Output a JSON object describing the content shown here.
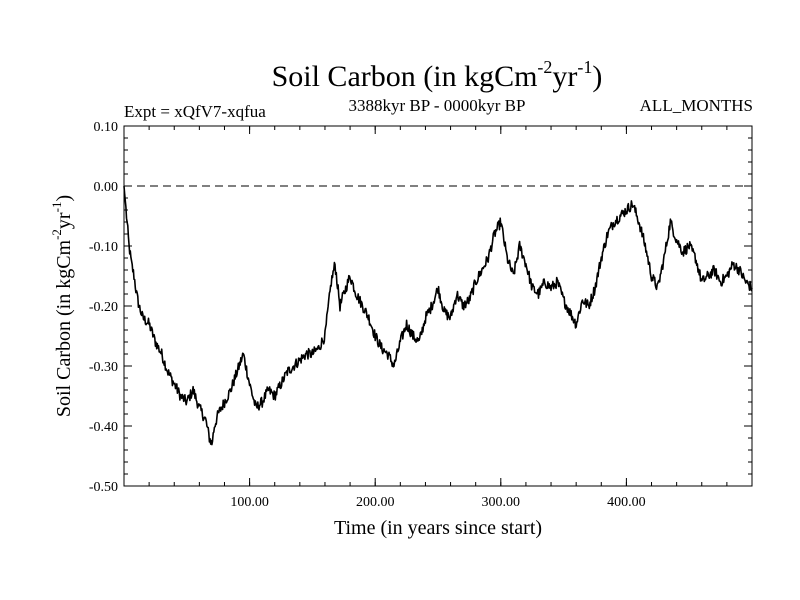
{
  "chart_data": {
    "type": "line",
    "title_main": "Soil Carbon (in kgCm",
    "title_sup1": "-2",
    "title_mid": "yr",
    "title_sup2": "-1",
    "title_end": ")",
    "subtitle_left": "Expt = xQfV7-xqfua",
    "subtitle_center": "3388kyr BP - 0000kyr BP",
    "subtitle_right": "ALL_MONTHS",
    "xlabel": "Time (in years since start)",
    "ylabel_main": "Soil Carbon (in kgCm",
    "ylabel_sup1": "-2",
    "ylabel_mid": "yr",
    "ylabel_sup2": "-1",
    "ylabel_end": ")",
    "xlim": [
      0,
      500
    ],
    "ylim": [
      -0.5,
      0.1
    ],
    "x_ticks": [
      100,
      200,
      300,
      400
    ],
    "x_tick_labels": [
      "100.00",
      "200.00",
      "300.00",
      "400.00"
    ],
    "y_ticks": [
      0.1,
      0.0,
      -0.1,
      -0.2,
      -0.3,
      -0.4,
      -0.5
    ],
    "y_tick_labels": [
      "0.10",
      "0.00",
      "-0.10",
      "-0.20",
      "-0.30",
      "-0.40",
      "-0.50"
    ],
    "reference_line": 0.0,
    "series": [
      {
        "name": "Soil Carbon",
        "color": "#000000",
        "x": [
          0,
          2,
          4,
          6,
          8,
          10,
          12,
          15,
          20,
          25,
          30,
          35,
          40,
          45,
          50,
          55,
          60,
          65,
          68,
          70,
          72,
          75,
          80,
          85,
          90,
          95,
          100,
          105,
          110,
          115,
          120,
          125,
          130,
          135,
          140,
          145,
          150,
          155,
          160,
          165,
          168,
          172,
          175,
          180,
          185,
          190,
          195,
          200,
          205,
          210,
          215,
          220,
          225,
          230,
          235,
          240,
          245,
          250,
          255,
          260,
          265,
          270,
          275,
          280,
          285,
          290,
          295,
          300,
          305,
          310,
          315,
          320,
          325,
          330,
          335,
          340,
          345,
          350,
          355,
          360,
          365,
          370,
          375,
          380,
          385,
          390,
          395,
          400,
          405,
          410,
          415,
          420,
          425,
          430,
          435,
          440,
          445,
          450,
          455,
          460,
          465,
          470,
          475,
          480,
          485,
          490,
          495,
          500
        ],
        "y": [
          0.0,
          -0.05,
          -0.1,
          -0.13,
          -0.15,
          -0.18,
          -0.2,
          -0.22,
          -0.23,
          -0.26,
          -0.28,
          -0.31,
          -0.33,
          -0.35,
          -0.36,
          -0.34,
          -0.37,
          -0.39,
          -0.42,
          -0.43,
          -0.4,
          -0.38,
          -0.36,
          -0.34,
          -0.31,
          -0.28,
          -0.33,
          -0.37,
          -0.36,
          -0.34,
          -0.35,
          -0.33,
          -0.31,
          -0.3,
          -0.29,
          -0.28,
          -0.28,
          -0.27,
          -0.25,
          -0.16,
          -0.13,
          -0.2,
          -0.18,
          -0.15,
          -0.18,
          -0.2,
          -0.22,
          -0.25,
          -0.27,
          -0.28,
          -0.3,
          -0.26,
          -0.23,
          -0.25,
          -0.26,
          -0.22,
          -0.2,
          -0.17,
          -0.21,
          -0.22,
          -0.18,
          -0.2,
          -0.19,
          -0.16,
          -0.14,
          -0.12,
          -0.08,
          -0.06,
          -0.12,
          -0.15,
          -0.1,
          -0.13,
          -0.17,
          -0.18,
          -0.16,
          -0.17,
          -0.16,
          -0.19,
          -0.21,
          -0.23,
          -0.19,
          -0.2,
          -0.17,
          -0.12,
          -0.08,
          -0.06,
          -0.05,
          -0.04,
          -0.03,
          -0.06,
          -0.1,
          -0.15,
          -0.17,
          -0.12,
          -0.06,
          -0.09,
          -0.11,
          -0.1,
          -0.12,
          -0.16,
          -0.15,
          -0.14,
          -0.16,
          -0.15,
          -0.13,
          -0.14,
          -0.16,
          -0.17
        ]
      }
    ]
  }
}
